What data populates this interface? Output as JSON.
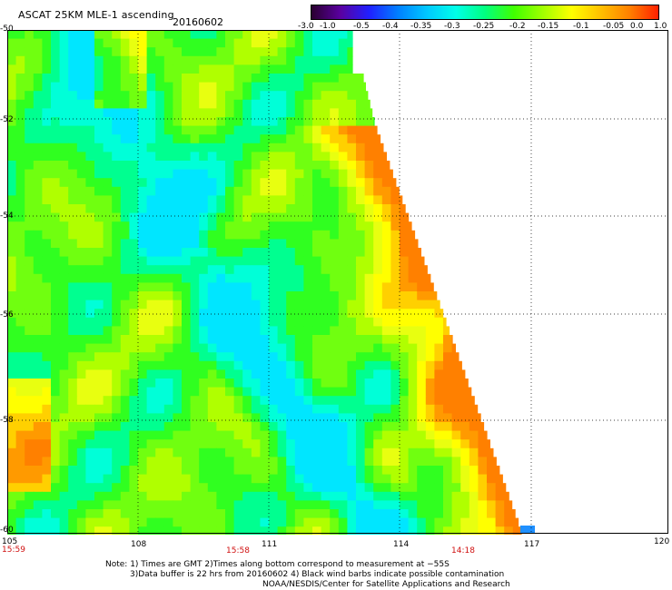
{
  "header": {
    "title": "ASCAT 25KM MLE-1 ascending",
    "date": "20160602"
  },
  "colorbar": {
    "labels": [
      "-3.0",
      "-1.0",
      "-0.5",
      "-0.4",
      "-0.35",
      "-0.3",
      "-0.25",
      "-0.2",
      "-0.15",
      "-0.1",
      "-0.05",
      "0.0",
      "1.0"
    ],
    "colors": [
      "#2a0030",
      "#5a00a0",
      "#2020ff",
      "#0080ff",
      "#00c8ff",
      "#00ffe8",
      "#00ff80",
      "#40ff00",
      "#a0ff00",
      "#ffff00",
      "#ffc000",
      "#ff8000",
      "#ff2000"
    ]
  },
  "axes": {
    "y_labels": [
      "-50",
      "-52",
      "-54",
      "-56",
      "-58",
      "-60"
    ],
    "x_labels": [
      "105",
      "108",
      "111",
      "114",
      "117",
      "120"
    ]
  },
  "times": {
    "left": "15:59",
    "middle": "15:58",
    "right": "14:18"
  },
  "notes": {
    "line1": "Note: 1) Times are GMT 2)Times along bottom correspond to measurement at −55S",
    "line2": "3)Data buffer is 22 hrs from 20160602 4) Black wind barbs indicate possible contamination",
    "line3": "NOAA/NESDIS/Center for Satellite Applications and Research"
  }
}
